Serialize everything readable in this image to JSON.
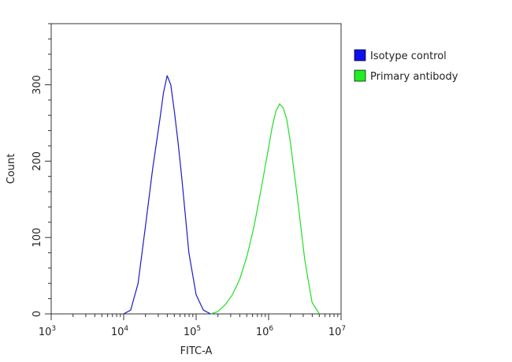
{
  "chart_data": {
    "type": "line",
    "title": "",
    "xlabel": "FITC-A",
    "ylabel": "Count",
    "xscale": "log",
    "xlim": [
      1000,
      10000000
    ],
    "ylim": [
      0,
      380
    ],
    "grid": false,
    "legend_position": "right",
    "x_ticks": [
      {
        "value": 1000,
        "base": "10",
        "exp": "3"
      },
      {
        "value": 10000,
        "base": "10",
        "exp": "4"
      },
      {
        "value": 100000,
        "base": "10",
        "exp": "5"
      },
      {
        "value": 1000000,
        "base": "10",
        "exp": "6"
      },
      {
        "value": 10000000,
        "base": "10",
        "exp": "7"
      }
    ],
    "y_ticks": [
      {
        "value": 0,
        "label": "0"
      },
      {
        "value": 100,
        "label": "100"
      },
      {
        "value": 200,
        "label": "200"
      },
      {
        "value": 300,
        "label": "300"
      }
    ],
    "series": [
      {
        "name": "Isotype control",
        "color": "#1a1acc",
        "x": [
          10000,
          12500,
          15800,
          20000,
          25100,
          31600,
          35500,
          39800,
          44700,
          50100,
          56200,
          63100,
          70800,
          79400,
          100000,
          125900,
          158500
        ],
        "y": [
          0,
          5,
          40,
          115,
          190,
          255,
          290,
          312,
          300,
          265,
          225,
          180,
          130,
          80,
          25,
          5,
          0
        ]
      },
      {
        "name": "Primary antibody",
        "color": "#22dd22",
        "x": [
          158500,
          199500,
          251200,
          316200,
          398100,
          501200,
          631000,
          794300,
          1000000,
          1122000,
          1259000,
          1412500,
          1584900,
          1778300,
          1995300,
          2511900,
          3162300,
          3981100,
          5011900
        ],
        "y": [
          0,
          3,
          12,
          25,
          45,
          75,
          115,
          165,
          218,
          245,
          265,
          275,
          270,
          255,
          225,
          150,
          70,
          15,
          0
        ]
      }
    ]
  }
}
